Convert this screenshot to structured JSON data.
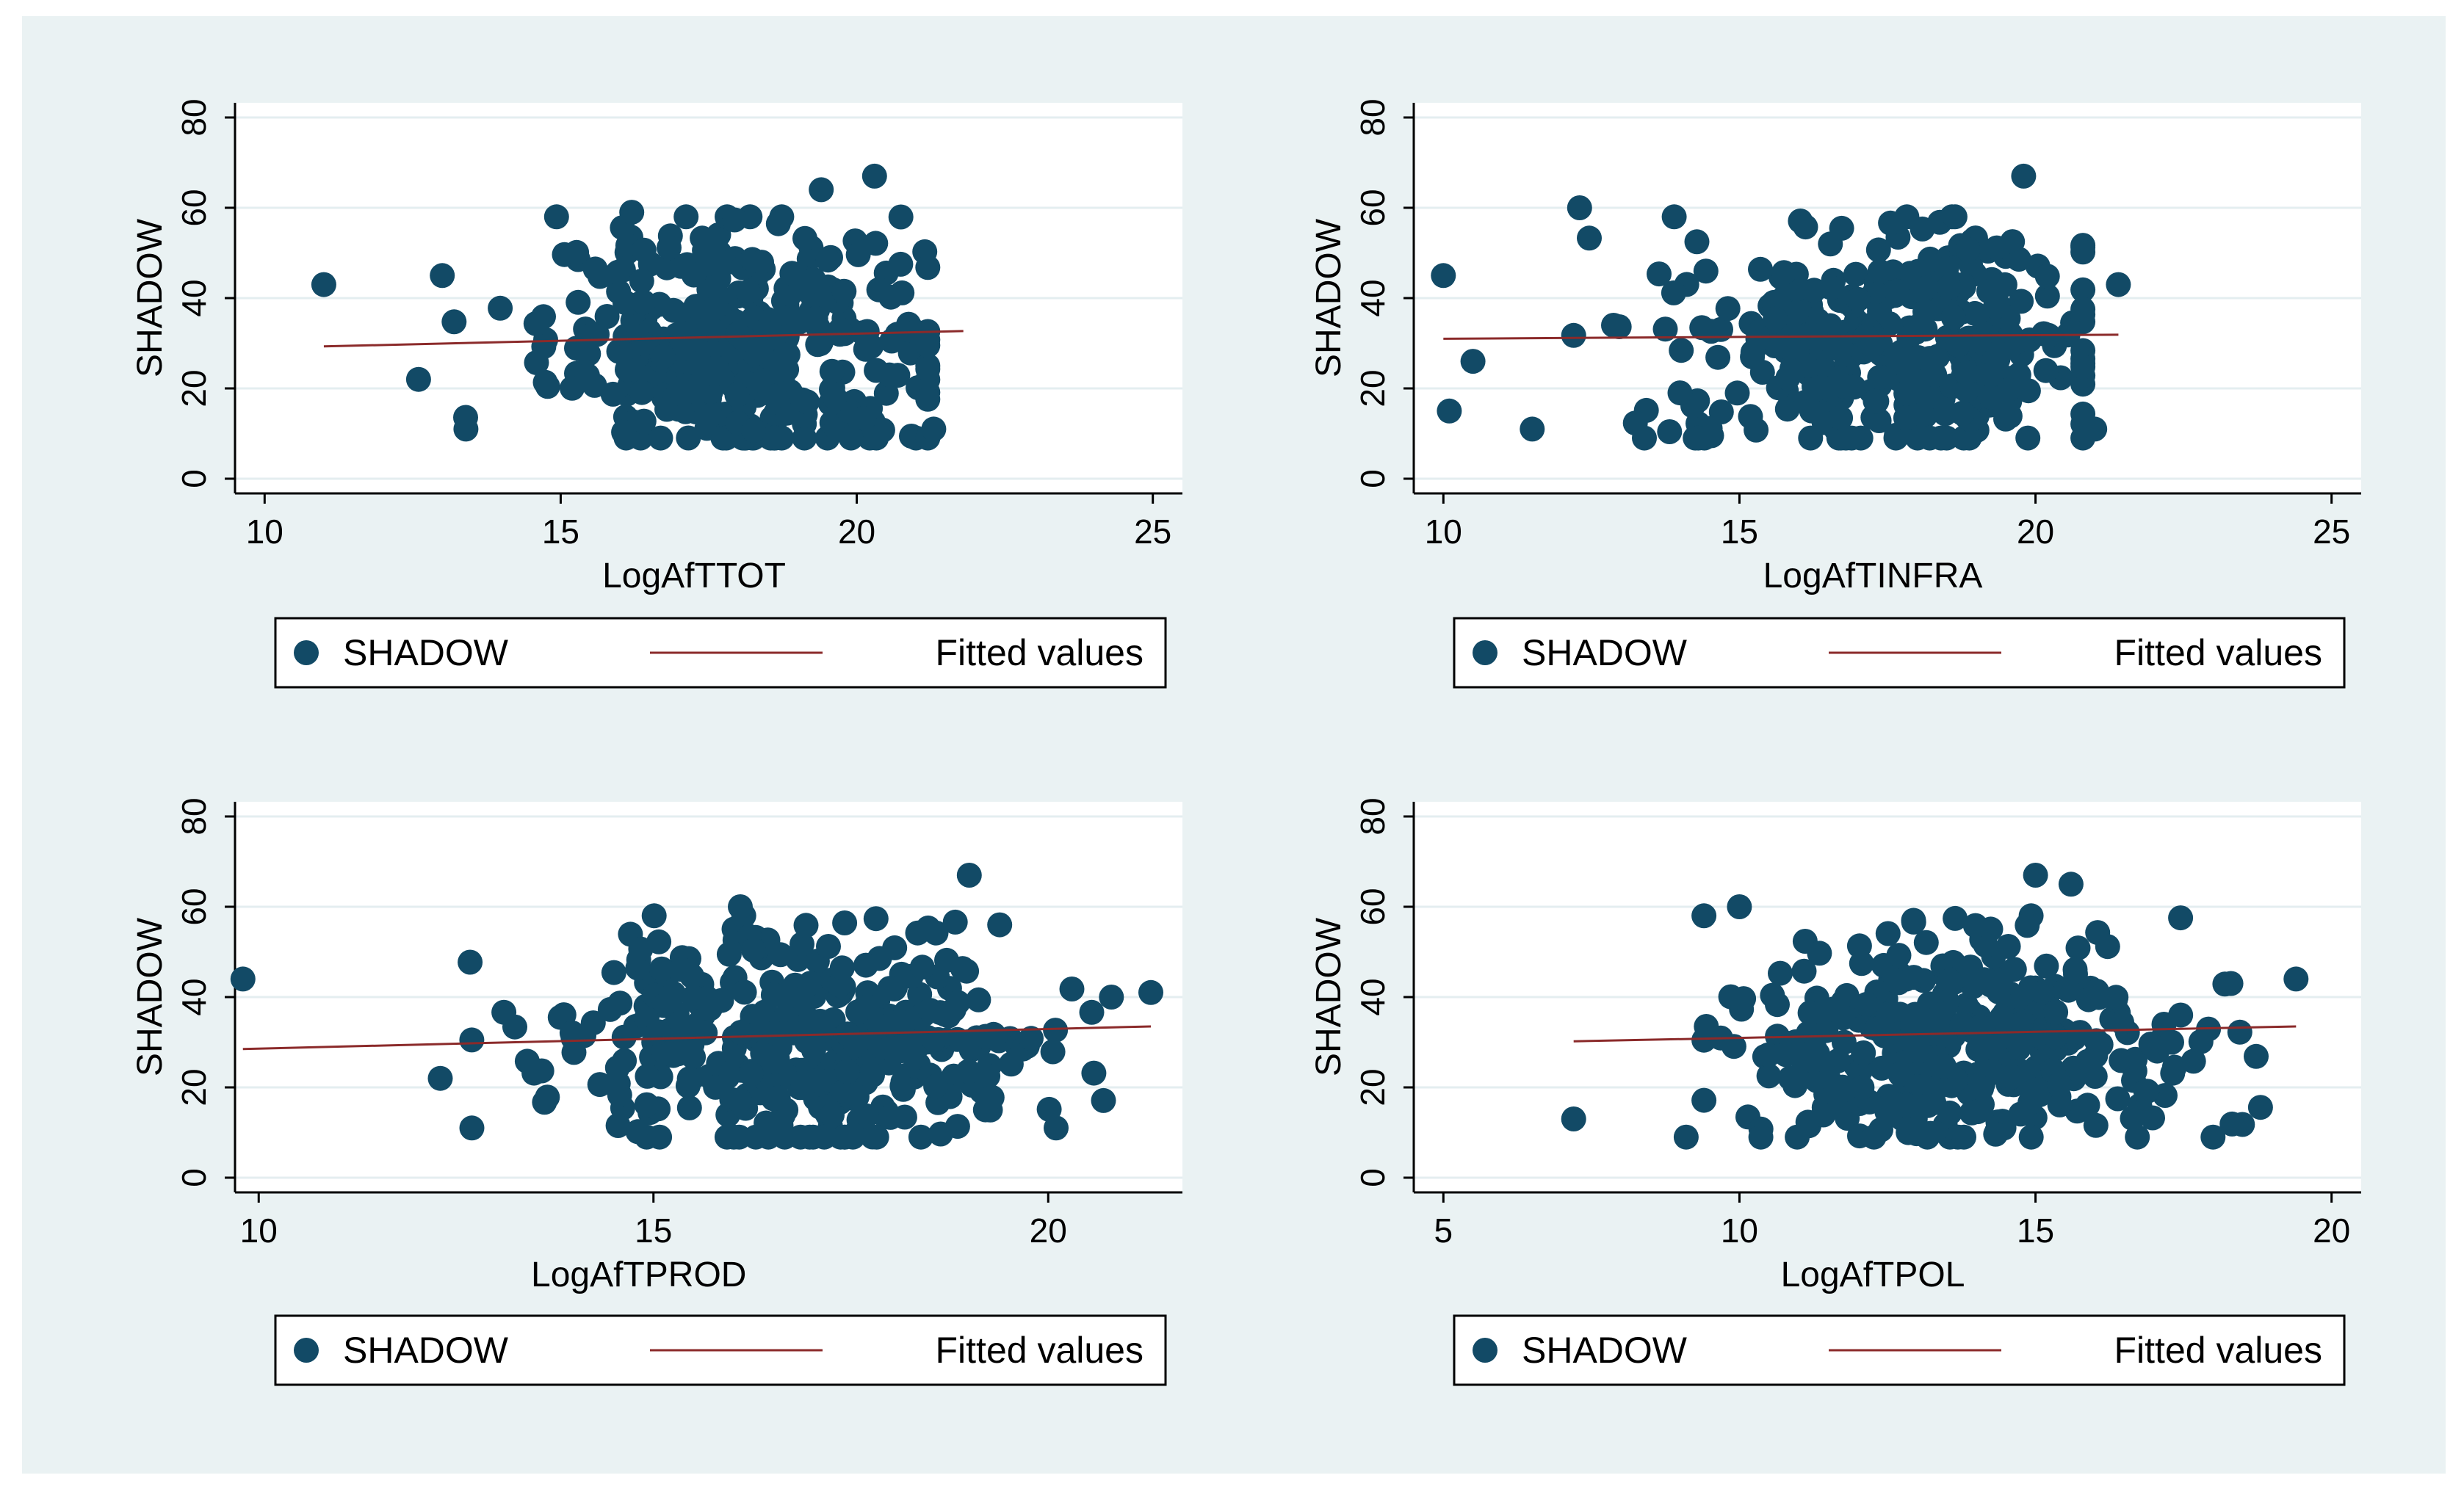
{
  "colors": {
    "background": "#eaf2f3",
    "point": "#124a66",
    "fit": "#8b2a2a",
    "grid": "#e4eef0"
  },
  "chart_data": [
    {
      "type": "scatter",
      "title": "",
      "xlabel": "LogAfTTOT",
      "ylabel": "SHADOW",
      "xlim": [
        9.5,
        25.5
      ],
      "ylim": [
        0,
        80
      ],
      "xticks": [
        10,
        15,
        20,
        25
      ],
      "yticks": [
        0,
        20,
        40,
        60,
        80
      ],
      "series": [
        {
          "name": "SHADOW",
          "kind": "points",
          "x_range": [
            11,
            21.8
          ],
          "x_center": 18,
          "x_spread": 1.6,
          "outliers": [
            [
              11,
              43
            ],
            [
              12.6,
              22
            ],
            [
              13.4,
              11
            ],
            [
              21.3,
              11
            ],
            [
              20.3,
              67
            ],
            [
              19.4,
              64
            ],
            [
              16.2,
              59
            ],
            [
              13,
              45
            ]
          ]
        },
        {
          "name": "Fitted values",
          "kind": "line",
          "x": [
            11,
            21.8
          ],
          "y": [
            29.3,
            32.7
          ]
        }
      ],
      "legend": [
        "SHADOW",
        "Fitted values"
      ]
    },
    {
      "type": "scatter",
      "title": "",
      "xlabel": "LogAfTINFRA",
      "ylabel": "SHADOW",
      "xlim": [
        9.5,
        25.5
      ],
      "ylim": [
        0,
        80
      ],
      "xticks": [
        10,
        15,
        20,
        25
      ],
      "yticks": [
        0,
        20,
        40,
        60,
        80
      ],
      "series": [
        {
          "name": "SHADOW",
          "kind": "points",
          "x_range": [
            10,
            21.4
          ],
          "x_center": 17.5,
          "x_spread": 1.9,
          "outliers": [
            [
              10,
              45
            ],
            [
              10.1,
              15
            ],
            [
              10.5,
              26
            ],
            [
              11.5,
              11
            ],
            [
              12.3,
              60
            ],
            [
              21,
              11
            ],
            [
              19.8,
              67
            ],
            [
              21.4,
              43
            ]
          ]
        },
        {
          "name": "Fitted values",
          "kind": "line",
          "x": [
            10,
            21.4
          ],
          "y": [
            31.0,
            31.9
          ]
        }
      ],
      "legend": [
        "SHADOW",
        "Fitted values"
      ]
    },
    {
      "type": "scatter",
      "title": "",
      "xlabel": "LogAfTPROD",
      "ylabel": "SHADOW",
      "xlim": [
        9.7,
        21.7
      ],
      "ylim": [
        0,
        80
      ],
      "xticks": [
        10,
        15,
        20
      ],
      "yticks": [
        0,
        20,
        40,
        60,
        80
      ],
      "series": [
        {
          "name": "SHADOW",
          "kind": "points",
          "x_range": [
            9.8,
            21.3
          ],
          "x_center": 17,
          "x_spread": 1.6,
          "outliers": [
            [
              9.8,
              44
            ],
            [
              12.3,
              22
            ],
            [
              12.7,
              11
            ],
            [
              20.1,
              11
            ],
            [
              19,
              67
            ],
            [
              21.3,
              41
            ],
            [
              16.1,
              60
            ],
            [
              20.8,
              40
            ]
          ]
        },
        {
          "name": "Fitted values",
          "kind": "line",
          "x": [
            9.8,
            21.3
          ],
          "y": [
            28.5,
            33.5
          ]
        }
      ],
      "legend": [
        "SHADOW",
        "Fitted values"
      ]
    },
    {
      "type": "scatter",
      "title": "",
      "xlabel": "LogAfTPOL",
      "ylabel": "SHADOW",
      "xlim": [
        4.5,
        20.5
      ],
      "ylim": [
        0,
        80
      ],
      "xticks": [
        5,
        10,
        15,
        20
      ],
      "yticks": [
        0,
        20,
        40,
        60,
        80
      ],
      "series": [
        {
          "name": "SHADOW",
          "kind": "points",
          "x_range": [
            7.2,
            19.4
          ],
          "x_center": 13.8,
          "x_spread": 2.0,
          "outliers": [
            [
              7.2,
              13
            ],
            [
              9.1,
              9
            ],
            [
              10,
              60
            ],
            [
              18.3,
              43
            ],
            [
              19.4,
              44
            ],
            [
              15,
              67
            ],
            [
              15.6,
              65
            ],
            [
              17.3,
              30
            ]
          ]
        },
        {
          "name": "Fitted values",
          "kind": "line",
          "x": [
            7.2,
            19.4
          ],
          "y": [
            30.2,
            33.5
          ]
        }
      ],
      "legend": [
        "SHADOW",
        "Fitted values"
      ]
    }
  ]
}
